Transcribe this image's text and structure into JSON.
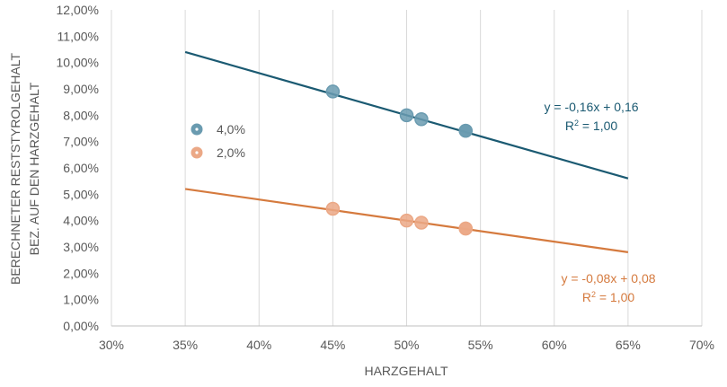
{
  "chart_data": {
    "type": "scatter",
    "xlabel": "HARZGEHALT",
    "ylabel_line1": "BERECHNETER RESTSTYROLGEHALT",
    "ylabel_line2": "BEZ. AUF DEN HARZGEHALT",
    "xlim": [
      0.3,
      0.7
    ],
    "ylim": [
      0.0,
      0.12
    ],
    "x_ticks": [
      0.3,
      0.35,
      0.4,
      0.45,
      0.5,
      0.55,
      0.6,
      0.65,
      0.7
    ],
    "x_tick_labels": [
      "30%",
      "35%",
      "40%",
      "45%",
      "50%",
      "55%",
      "60%",
      "65%",
      "70%"
    ],
    "y_ticks": [
      0.0,
      0.01,
      0.02,
      0.03,
      0.04,
      0.05,
      0.06,
      0.07,
      0.08,
      0.09,
      0.1,
      0.11,
      0.12
    ],
    "y_tick_labels": [
      "0,00%",
      "1,00%",
      "2,00%",
      "3,00%",
      "4,00%",
      "5,00%",
      "6,00%",
      "7,00%",
      "8,00%",
      "9,00%",
      "10,00%",
      "11,00%",
      "12,00%"
    ],
    "grid": "vertical",
    "legend_position": "left-middle",
    "series": [
      {
        "name": "4,0%",
        "color": "#1b5a72",
        "marker_color": "#6a9bb0",
        "x": [
          0.45,
          0.5,
          0.51,
          0.54,
          0.54
        ],
        "y": [
          0.089,
          0.08,
          0.0785,
          0.0741,
          0.0741
        ],
        "trendline": {
          "slope": -0.16,
          "intercept": 0.16,
          "x_range": [
            0.35,
            0.65
          ]
        },
        "equation": "y = -0,16x + 0,16",
        "r2_prefix": "R",
        "r2_sup": "2",
        "r2_value": " = 1,00"
      },
      {
        "name": "2,0%",
        "color": "#d57a3e",
        "marker_color": "#eba886",
        "x": [
          0.45,
          0.5,
          0.51,
          0.54,
          0.54
        ],
        "y": [
          0.0445,
          0.04,
          0.0392,
          0.037,
          0.037
        ],
        "trendline": {
          "slope": -0.08,
          "intercept": 0.08,
          "x_range": [
            0.35,
            0.65
          ]
        },
        "equation": "y = -0,08x + 0,08",
        "r2_prefix": "R",
        "r2_sup": "2",
        "r2_value": " = 1,00"
      }
    ]
  }
}
